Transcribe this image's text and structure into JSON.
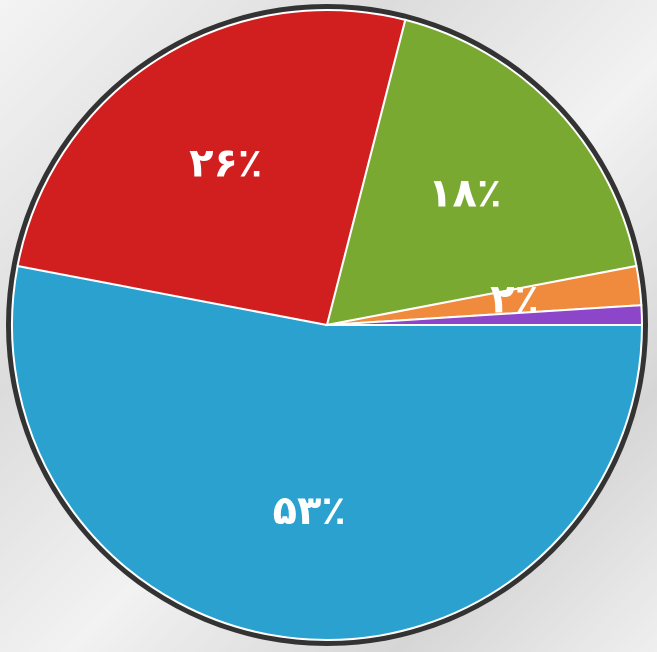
{
  "chart_data": {
    "type": "pie",
    "values": [
      53,
      26,
      18,
      2,
      1
    ],
    "value_labels": [
      "۵۳٪",
      "۲۶٪",
      "۱۸٪",
      "۲٪",
      null
    ],
    "colors": [
      "#2aa1cf",
      "#d11f1f",
      "#7aa932",
      "#f08a3c",
      "#8d45c9"
    ]
  }
}
